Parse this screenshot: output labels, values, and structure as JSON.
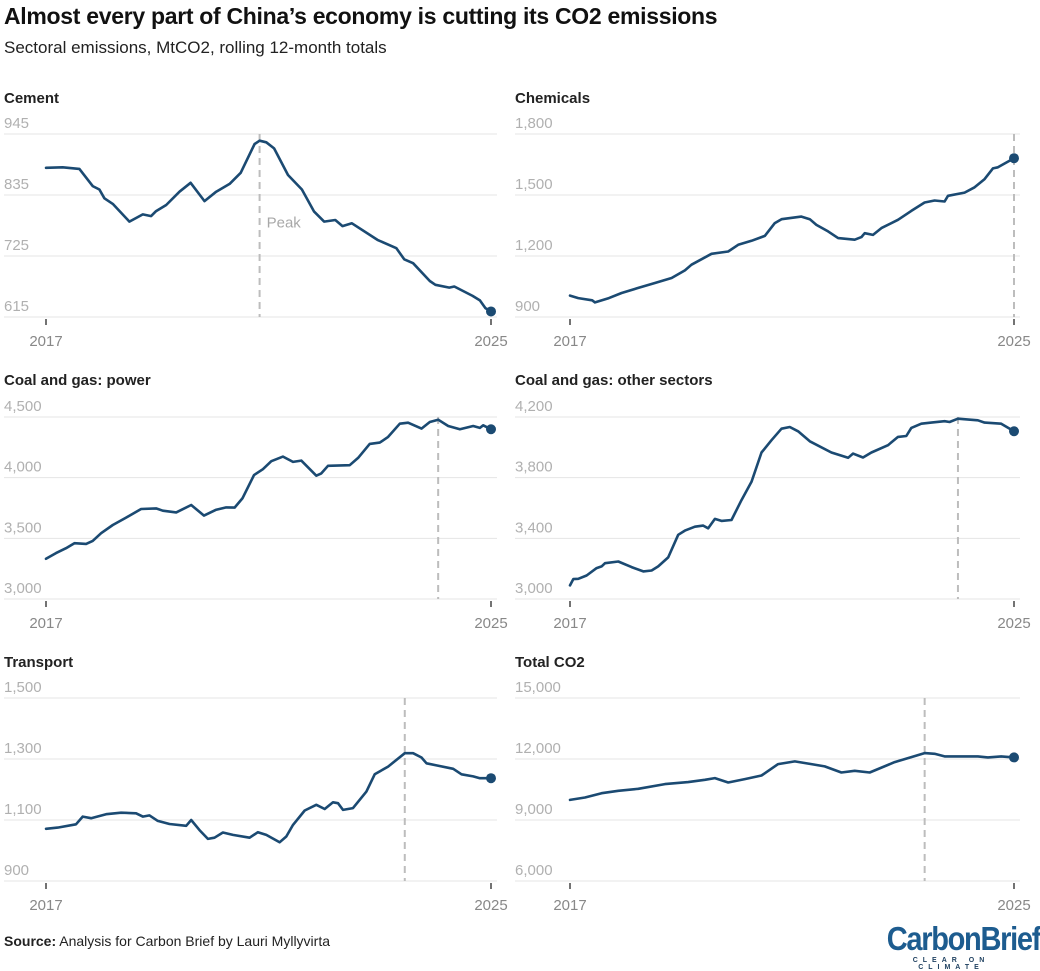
{
  "title": "Almost every part of China’s economy is cutting its CO2 emissions",
  "subtitle": "Sectoral emissions, MtCO2, rolling 12-month totals",
  "source": {
    "label": "Source:",
    "text": " Analysis for Carbon Brief by Lauri Myllyvirta"
  },
  "logo": {
    "word": "CarbonBrief",
    "tagline": "CLEAR ON CLIMATE"
  },
  "colors": {
    "line": "#1b4a72",
    "grid": "#e4e4e4",
    "peak_line": "#bdbdbd"
  },
  "chart_data": [
    {
      "type": "line",
      "title": "Cement",
      "ylim": [
        615,
        945
      ],
      "yticks": [
        615,
        725,
        835,
        945
      ],
      "ytick_labels": [
        "615",
        "725",
        "835",
        "945"
      ],
      "xlim": [
        2017,
        2025
      ],
      "xtick_labels": [
        "2017",
        "2025"
      ],
      "peak": 2020.84,
      "peak_label": "Peak",
      "points": [
        [
          2017.0,
          884
        ],
        [
          2017.3,
          885
        ],
        [
          2017.6,
          882
        ],
        [
          2017.84,
          851
        ],
        [
          2017.96,
          845
        ],
        [
          2018.05,
          829
        ],
        [
          2018.2,
          819
        ],
        [
          2018.5,
          787
        ],
        [
          2018.74,
          800
        ],
        [
          2018.89,
          797
        ],
        [
          2018.98,
          806
        ],
        [
          2019.16,
          817
        ],
        [
          2019.4,
          841
        ],
        [
          2019.6,
          857
        ],
        [
          2019.85,
          824
        ],
        [
          2020.06,
          841
        ],
        [
          2020.3,
          855
        ],
        [
          2020.5,
          875
        ],
        [
          2020.75,
          927
        ],
        [
          2020.84,
          933
        ],
        [
          2020.96,
          930
        ],
        [
          2021.1,
          919
        ],
        [
          2021.35,
          871
        ],
        [
          2021.6,
          845
        ],
        [
          2021.82,
          805
        ],
        [
          2022.0,
          787
        ],
        [
          2022.2,
          790
        ],
        [
          2022.33,
          779
        ],
        [
          2022.5,
          784
        ],
        [
          2022.96,
          754
        ],
        [
          2023.3,
          739
        ],
        [
          2023.44,
          719
        ],
        [
          2023.6,
          712
        ],
        [
          2023.9,
          680
        ],
        [
          2024.0,
          673
        ],
        [
          2024.25,
          668
        ],
        [
          2024.34,
          670
        ],
        [
          2024.67,
          653
        ],
        [
          2024.8,
          645
        ],
        [
          2024.9,
          631
        ],
        [
          2025.0,
          625
        ]
      ]
    },
    {
      "type": "line",
      "title": "Chemicals",
      "ylim": [
        900,
        1800
      ],
      "yticks": [
        900,
        1200,
        1500,
        1800
      ],
      "ytick_labels": [
        "900",
        "1,200",
        "1,500",
        "1,800"
      ],
      "xlim": [
        2017,
        2025
      ],
      "xtick_labels": [
        "2017",
        "2025"
      ],
      "peak": 2025.0,
      "points": [
        [
          2017.0,
          1005
        ],
        [
          2017.15,
          993
        ],
        [
          2017.4,
          982
        ],
        [
          2017.45,
          972
        ],
        [
          2017.7,
          993
        ],
        [
          2017.93,
          1018
        ],
        [
          2018.23,
          1043
        ],
        [
          2018.53,
          1067
        ],
        [
          2018.83,
          1092
        ],
        [
          2019.07,
          1129
        ],
        [
          2019.19,
          1157
        ],
        [
          2019.55,
          1211
        ],
        [
          2019.85,
          1222
        ],
        [
          2020.03,
          1255
        ],
        [
          2020.27,
          1275
        ],
        [
          2020.51,
          1299
        ],
        [
          2020.69,
          1362
        ],
        [
          2020.81,
          1381
        ],
        [
          2021.17,
          1394
        ],
        [
          2021.32,
          1381
        ],
        [
          2021.44,
          1353
        ],
        [
          2021.65,
          1321
        ],
        [
          2021.83,
          1288
        ],
        [
          2022.13,
          1280
        ],
        [
          2022.25,
          1293
        ],
        [
          2022.31,
          1312
        ],
        [
          2022.46,
          1304
        ],
        [
          2022.61,
          1337
        ],
        [
          2022.91,
          1378
        ],
        [
          2023.15,
          1422
        ],
        [
          2023.39,
          1463
        ],
        [
          2023.57,
          1473
        ],
        [
          2023.75,
          1468
        ],
        [
          2023.81,
          1496
        ],
        [
          2024.11,
          1512
        ],
        [
          2024.29,
          1538
        ],
        [
          2024.47,
          1578
        ],
        [
          2024.62,
          1631
        ],
        [
          2024.71,
          1636
        ],
        [
          2025.0,
          1681
        ]
      ]
    },
    {
      "type": "line",
      "title": "Coal and gas: power",
      "ylim": [
        3000,
        4500
      ],
      "yticks": [
        3000,
        3500,
        4000,
        4500
      ],
      "ytick_labels": [
        "3,000",
        "3,500",
        "4,000",
        "4,500"
      ],
      "xlim": [
        2017,
        2025
      ],
      "xtick_labels": [
        "2017",
        "2025"
      ],
      "peak": 2024.05,
      "points": [
        [
          2017.0,
          3331
        ],
        [
          2017.18,
          3378
        ],
        [
          2017.36,
          3419
        ],
        [
          2017.51,
          3460
        ],
        [
          2017.72,
          3454
        ],
        [
          2017.84,
          3479
        ],
        [
          2017.99,
          3542
        ],
        [
          2018.2,
          3610
        ],
        [
          2018.44,
          3671
        ],
        [
          2018.71,
          3742
        ],
        [
          2018.98,
          3747
        ],
        [
          2019.1,
          3728
        ],
        [
          2019.34,
          3714
        ],
        [
          2019.61,
          3775
        ],
        [
          2019.84,
          3687
        ],
        [
          2020.05,
          3734
        ],
        [
          2020.24,
          3755
        ],
        [
          2020.39,
          3753
        ],
        [
          2020.53,
          3829
        ],
        [
          2020.74,
          4021
        ],
        [
          2020.9,
          4070
        ],
        [
          2021.05,
          4136
        ],
        [
          2021.26,
          4174
        ],
        [
          2021.44,
          4130
        ],
        [
          2021.59,
          4141
        ],
        [
          2021.86,
          4016
        ],
        [
          2021.95,
          4035
        ],
        [
          2022.07,
          4098
        ],
        [
          2022.46,
          4103
        ],
        [
          2022.61,
          4163
        ],
        [
          2022.82,
          4278
        ],
        [
          2023.0,
          4289
        ],
        [
          2023.15,
          4336
        ],
        [
          2023.36,
          4445
        ],
        [
          2023.51,
          4453
        ],
        [
          2023.75,
          4404
        ],
        [
          2023.9,
          4459
        ],
        [
          2024.05,
          4478
        ],
        [
          2024.23,
          4426
        ],
        [
          2024.44,
          4399
        ],
        [
          2024.68,
          4426
        ],
        [
          2024.8,
          4410
        ],
        [
          2024.86,
          4432
        ],
        [
          2025.0,
          4399
        ]
      ]
    },
    {
      "type": "line",
      "title": "Coal and gas: other sectors",
      "ylim": [
        3000,
        4200
      ],
      "yticks": [
        3000,
        3400,
        3800,
        4200
      ],
      "ytick_labels": [
        "3,000",
        "3,400",
        "3,800",
        "4,200"
      ],
      "xlim": [
        2017,
        2025
      ],
      "xtick_labels": [
        "2017",
        "2025"
      ],
      "peak": 2023.99,
      "points": [
        [
          2017.0,
          3090
        ],
        [
          2017.06,
          3131
        ],
        [
          2017.15,
          3133
        ],
        [
          2017.3,
          3155
        ],
        [
          2017.48,
          3204
        ],
        [
          2017.57,
          3215
        ],
        [
          2017.63,
          3236
        ],
        [
          2017.87,
          3247
        ],
        [
          2018.11,
          3210
        ],
        [
          2018.32,
          3182
        ],
        [
          2018.47,
          3188
        ],
        [
          2018.59,
          3215
        ],
        [
          2018.77,
          3274
        ],
        [
          2018.95,
          3423
        ],
        [
          2019.07,
          3451
        ],
        [
          2019.25,
          3477
        ],
        [
          2019.4,
          3484
        ],
        [
          2019.49,
          3466
        ],
        [
          2019.61,
          3528
        ],
        [
          2019.73,
          3515
        ],
        [
          2019.91,
          3521
        ],
        [
          2020.09,
          3652
        ],
        [
          2020.27,
          3773
        ],
        [
          2020.45,
          3966
        ],
        [
          2020.63,
          4047
        ],
        [
          2020.81,
          4123
        ],
        [
          2020.96,
          4134
        ],
        [
          2021.11,
          4106
        ],
        [
          2021.32,
          4040
        ],
        [
          2021.71,
          3966
        ],
        [
          2022.01,
          3931
        ],
        [
          2022.1,
          3959
        ],
        [
          2022.28,
          3933
        ],
        [
          2022.43,
          3966
        ],
        [
          2022.73,
          4014
        ],
        [
          2022.91,
          4069
        ],
        [
          2023.06,
          4075
        ],
        [
          2023.15,
          4128
        ],
        [
          2023.33,
          4156
        ],
        [
          2023.51,
          4163
        ],
        [
          2023.75,
          4172
        ],
        [
          2023.84,
          4167
        ],
        [
          2023.99,
          4189
        ],
        [
          2024.35,
          4178
        ],
        [
          2024.47,
          4163
        ],
        [
          2024.77,
          4156
        ],
        [
          2025.0,
          4106
        ]
      ]
    },
    {
      "type": "line",
      "title": "Transport",
      "ylim": [
        900,
        1500
      ],
      "yticks": [
        900,
        1100,
        1300,
        1500
      ],
      "ytick_labels": [
        "900",
        "1,100",
        "1,300",
        "1,500"
      ],
      "xlim": [
        2017,
        2025
      ],
      "xtick_labels": [
        "2017",
        "2025"
      ],
      "peak": 2023.45,
      "points": [
        [
          2017.0,
          1071
        ],
        [
          2017.21,
          1075
        ],
        [
          2017.54,
          1086
        ],
        [
          2017.66,
          1111
        ],
        [
          2017.81,
          1106
        ],
        [
          2018.08,
          1119
        ],
        [
          2018.35,
          1124
        ],
        [
          2018.62,
          1122
        ],
        [
          2018.74,
          1111
        ],
        [
          2018.86,
          1115
        ],
        [
          2019.01,
          1097
        ],
        [
          2019.22,
          1087
        ],
        [
          2019.52,
          1081
        ],
        [
          2019.61,
          1100
        ],
        [
          2019.76,
          1067
        ],
        [
          2019.91,
          1038
        ],
        [
          2020.03,
          1042
        ],
        [
          2020.18,
          1059
        ],
        [
          2020.36,
          1051
        ],
        [
          2020.66,
          1042
        ],
        [
          2020.81,
          1060
        ],
        [
          2020.96,
          1051
        ],
        [
          2021.2,
          1027
        ],
        [
          2021.32,
          1046
        ],
        [
          2021.44,
          1084
        ],
        [
          2021.65,
          1131
        ],
        [
          2021.86,
          1150
        ],
        [
          2022.01,
          1136
        ],
        [
          2022.16,
          1158
        ],
        [
          2022.25,
          1155
        ],
        [
          2022.34,
          1133
        ],
        [
          2022.52,
          1139
        ],
        [
          2022.76,
          1193
        ],
        [
          2022.91,
          1250
        ],
        [
          2023.15,
          1275
        ],
        [
          2023.45,
          1319
        ],
        [
          2023.6,
          1319
        ],
        [
          2023.75,
          1305
        ],
        [
          2023.84,
          1286
        ],
        [
          2024.02,
          1279
        ],
        [
          2024.32,
          1268
        ],
        [
          2024.47,
          1250
        ],
        [
          2024.68,
          1243
        ],
        [
          2024.8,
          1237
        ],
        [
          2025.0,
          1237
        ]
      ]
    },
    {
      "type": "line",
      "title": "Total CO2",
      "ylim": [
        6000,
        15000
      ],
      "yticks": [
        6000,
        9000,
        12000,
        15000
      ],
      "ytick_labels": [
        "6,000",
        "9,000",
        "12,000",
        "15,000"
      ],
      "xlim": [
        2017,
        2025
      ],
      "xtick_labels": [
        "2017",
        "2025"
      ],
      "peak": 2023.39,
      "points": [
        [
          2017.0,
          9990
        ],
        [
          2017.27,
          10107
        ],
        [
          2017.57,
          10320
        ],
        [
          2017.87,
          10435
        ],
        [
          2018.23,
          10534
        ],
        [
          2018.71,
          10764
        ],
        [
          2019.13,
          10862
        ],
        [
          2019.43,
          10977
        ],
        [
          2019.61,
          11059
        ],
        [
          2019.85,
          10846
        ],
        [
          2020.15,
          11010
        ],
        [
          2020.45,
          11190
        ],
        [
          2020.75,
          11749
        ],
        [
          2021.05,
          11880
        ],
        [
          2021.35,
          11749
        ],
        [
          2021.59,
          11634
        ],
        [
          2021.89,
          11338
        ],
        [
          2022.13,
          11420
        ],
        [
          2022.4,
          11338
        ],
        [
          2022.85,
          11847
        ],
        [
          2023.09,
          12044
        ],
        [
          2023.39,
          12291
        ],
        [
          2023.57,
          12258
        ],
        [
          2023.75,
          12127
        ],
        [
          2024.35,
          12127
        ],
        [
          2024.53,
          12077
        ],
        [
          2024.77,
          12127
        ],
        [
          2025.0,
          12077
        ]
      ]
    }
  ]
}
